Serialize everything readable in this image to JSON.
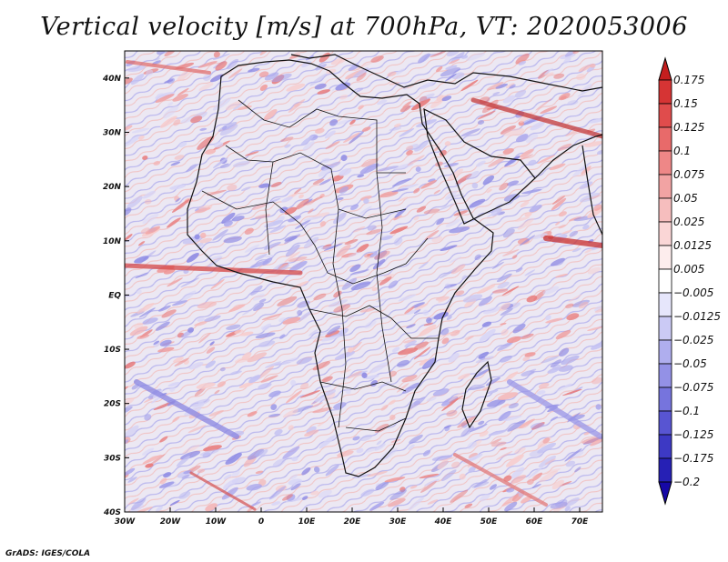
{
  "title": "Vertical velocity [m/s] at 700hPa, VT: 2020053006",
  "credit": "GrADS: IGES/COLA",
  "map": {
    "lat_labels": [
      "40N",
      "30N",
      "20N",
      "10N",
      "EQ",
      "10S",
      "20S",
      "30S",
      "40S"
    ],
    "lon_labels": [
      "30W",
      "20W",
      "10W",
      "0",
      "10E",
      "20E",
      "30E",
      "40E",
      "50E",
      "60E",
      "70E"
    ],
    "lon_range": [
      -30,
      75
    ],
    "lat_range": [
      -40,
      45
    ],
    "background_color": "#ece8f3",
    "upward_color": "#e88a8a",
    "downward_color": "#7d7ae0"
  },
  "colorbar": {
    "labels": [
      "0.175",
      "0.15",
      "0.125",
      "0.1",
      "0.075",
      "0.05",
      "0.025",
      "0.0125",
      "0.005",
      "−0.005",
      "−0.0125",
      "−0.025",
      "−0.05",
      "−0.075",
      "−0.1",
      "−0.125",
      "−0.175",
      "−0.2"
    ],
    "colors": [
      "#c41e1e",
      "#d63434",
      "#e04c4c",
      "#e86a6a",
      "#ee8787",
      "#f2a3a3",
      "#f6bebe",
      "#fad6d6",
      "#fdeded",
      "#ffffff",
      "#e6e6fb",
      "#cbcaf5",
      "#afaeee",
      "#9391e6",
      "#7674dd",
      "#5855d2",
      "#3d39c4",
      "#2620b5",
      "#1608a6"
    ]
  }
}
